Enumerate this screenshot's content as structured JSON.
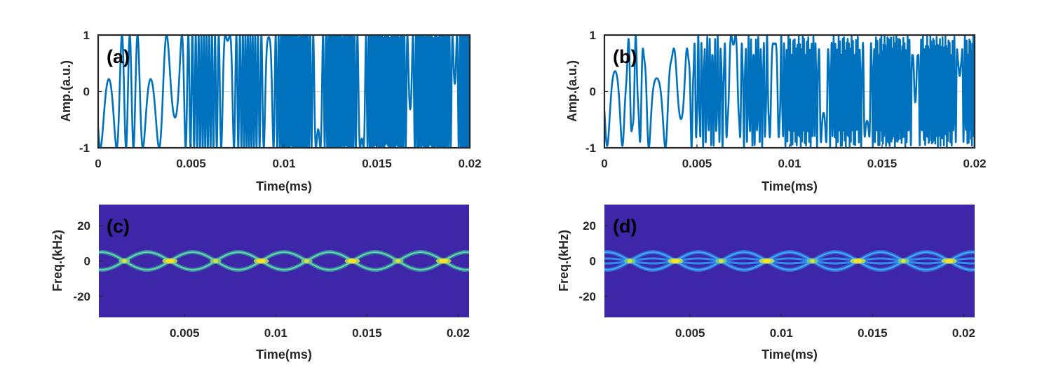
{
  "chart_data": [
    {
      "id": "a",
      "type": "line",
      "panel_label": "(a)",
      "xlabel": "Time(ms)",
      "ylabel": "Amp.(a.u.)",
      "xlim": [
        0,
        0.02
      ],
      "ylim": [
        -1,
        1
      ],
      "xticks": [
        0,
        0.005,
        0.01,
        0.015,
        0.02
      ],
      "xtick_labels": [
        "0",
        "0.005",
        "0.01",
        "0.015",
        "0.02"
      ],
      "yticks": [
        -1,
        0,
        1
      ],
      "ytick_labels": [
        "-1",
        "0",
        "1"
      ],
      "grid": true,
      "color": "#0072BD",
      "series": [
        {
          "signal": "cos(pi*(0.15+0.5*(cos(2*pi*t/0.005)+1))*t/0.00022)",
          "period_ms": 0.005
        }
      ]
    },
    {
      "id": "b",
      "type": "line",
      "panel_label": "(b)",
      "xlabel": "Time(ms)",
      "ylabel": "Amp.(a.u.)",
      "xlim": [
        0,
        0.02
      ],
      "ylim": [
        -1,
        1
      ],
      "xticks": [
        0,
        0.005,
        0.01,
        0.015,
        0.02
      ],
      "xtick_labels": [
        "0",
        "0.005",
        "0.01",
        "0.015",
        "0.02"
      ],
      "yticks": [
        -1,
        0,
        1
      ],
      "ytick_labels": [
        "-1",
        "0",
        "1"
      ],
      "grid": true,
      "color": "#0072BD",
      "series": [
        {
          "signal": "0.85*cos(...)+0.15*cos(...) (two-tone chirp)",
          "period_ms": 0.005
        }
      ]
    },
    {
      "id": "c",
      "type": "heatmap",
      "panel_label": "(c)",
      "xlabel": "Time(ms)",
      "ylabel": "Freq.(kHz)",
      "xlim": [
        0.0003,
        0.0206
      ],
      "ylim": [
        -32,
        32
      ],
      "xticks": [
        0.005,
        0.01,
        0.015,
        0.02
      ],
      "xtick_labels": [
        "0.005",
        "0.01",
        "0.015",
        "0.02"
      ],
      "yticks": [
        -20,
        0,
        20
      ],
      "ytick_labels": [
        "-20",
        "0",
        "20"
      ],
      "background_color": "#3E26A8",
      "curve_color": "#33B7A0",
      "crossing_color": "#F9E526",
      "crossing_times_ms": [
        0.0017,
        0.0042,
        0.0067,
        0.0092,
        0.0117,
        0.0142,
        0.0167,
        0.0192
      ],
      "bright_crossings_ms": [
        0.0042,
        0.0092,
        0.0142,
        0.0192
      ],
      "curve_amplitude_khz": 5
    },
    {
      "id": "d",
      "type": "heatmap",
      "panel_label": "(d)",
      "xlabel": "Time(ms)",
      "ylabel": "Freq.(kHz)",
      "xlim": [
        0.0003,
        0.0206
      ],
      "ylim": [
        -32,
        32
      ],
      "xticks": [
        0.005,
        0.01,
        0.015,
        0.02
      ],
      "xtick_labels": [
        "0.005",
        "0.01",
        "0.015",
        "0.02"
      ],
      "yticks": [
        -20,
        0,
        20
      ],
      "ytick_labels": [
        "-20",
        "0",
        "20"
      ],
      "background_color": "#3E26A8",
      "curve_color": "#2C8EF0",
      "crossing_color": "#F9E526",
      "crossing_times_ms": [
        0.0017,
        0.0042,
        0.0067,
        0.0092,
        0.0117,
        0.0142,
        0.0167,
        0.0192
      ],
      "bright_crossings_ms": [
        0.0042,
        0.0092,
        0.0142,
        0.0192
      ],
      "curve_amplitude_khz": 5,
      "inner_amplitude_khz": 1.4
    }
  ]
}
